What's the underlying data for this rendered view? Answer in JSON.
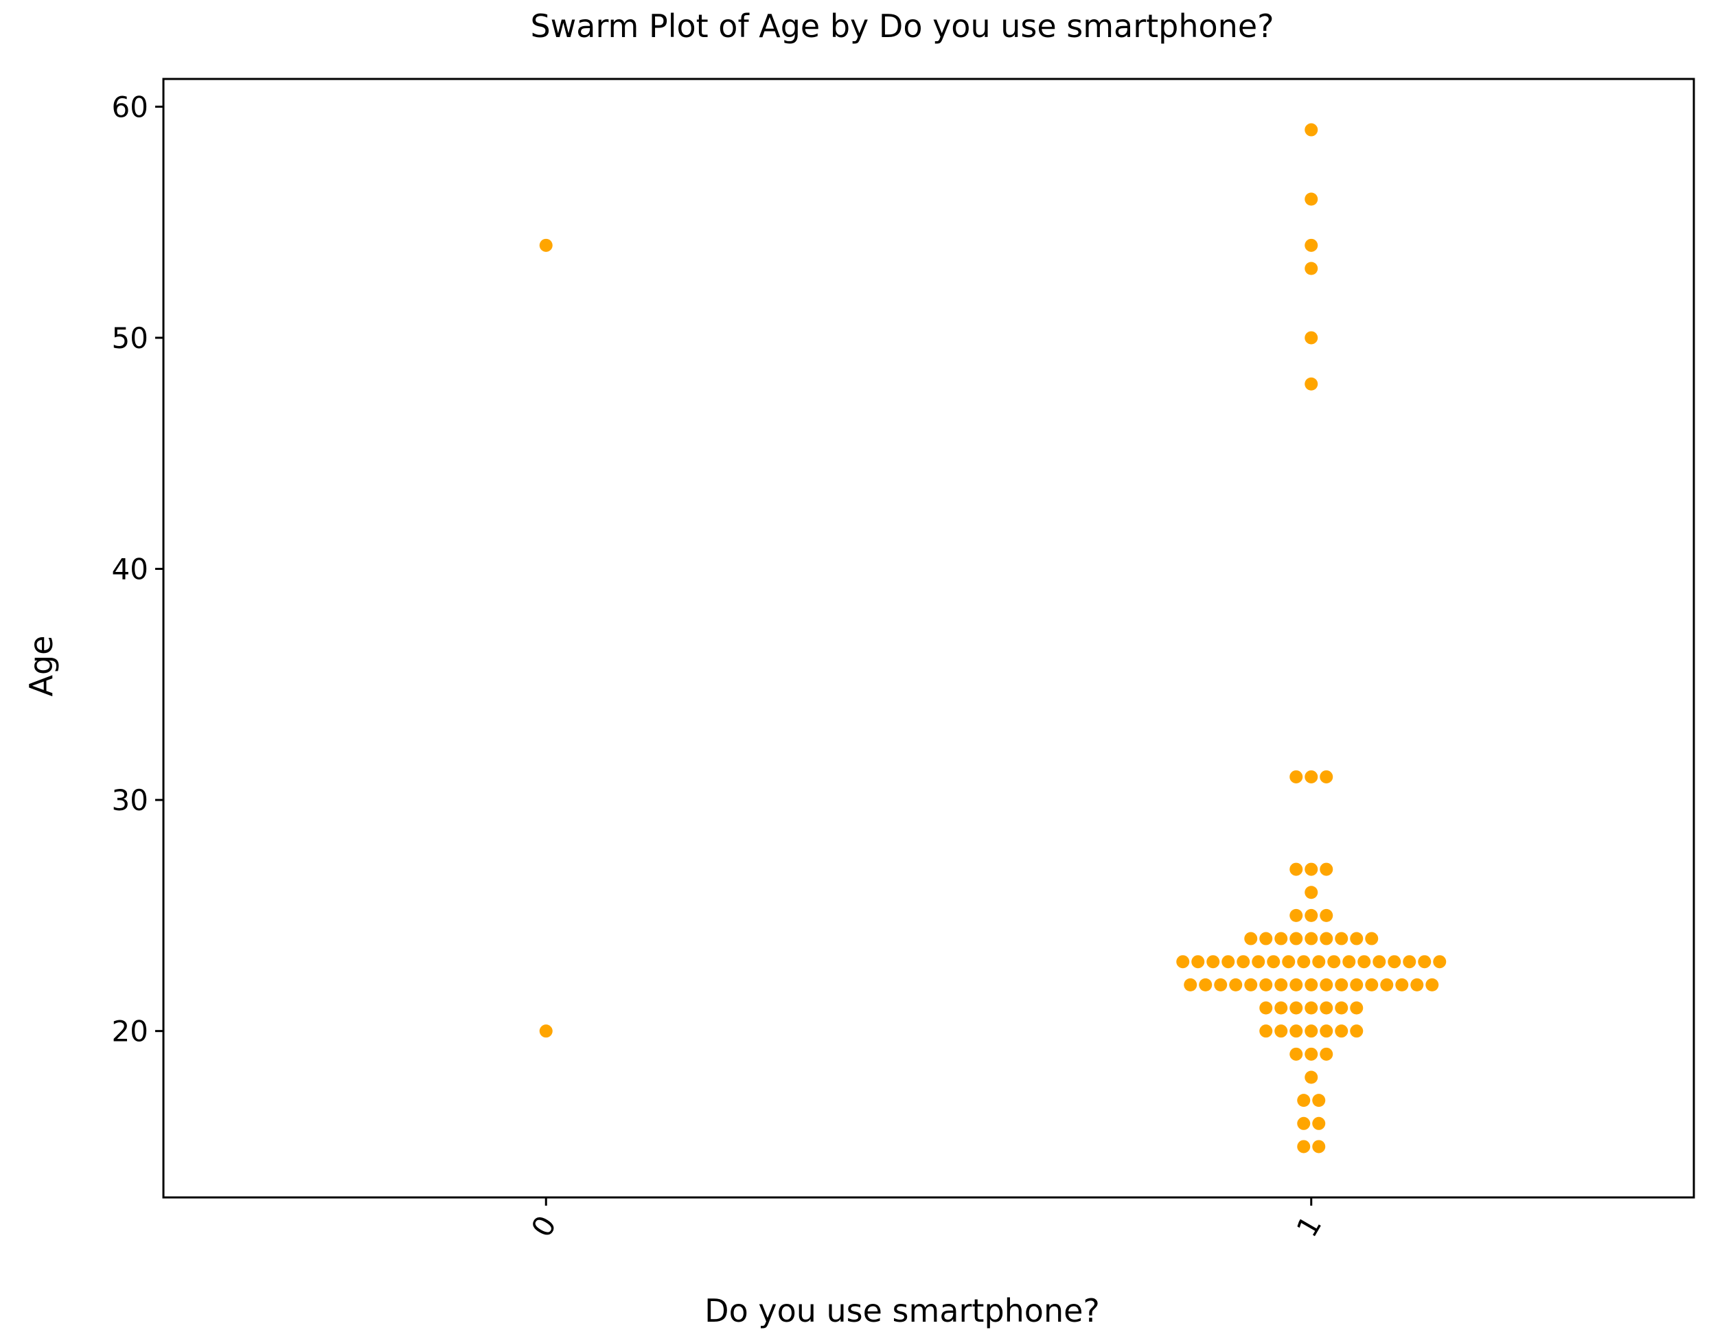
{
  "chart_data": {
    "type": "scatter",
    "subtype": "swarm",
    "title": "Swarm Plot of Age by Do you use smartphone?",
    "xlabel": "Do you use smartphone?",
    "ylabel": "Age",
    "categories": [
      "0",
      "1"
    ],
    "x_tick_rotation_deg": 60,
    "yticks": [
      20,
      30,
      40,
      50,
      60
    ],
    "ylim": [
      12.8,
      61.2
    ],
    "grid": false,
    "marker_color": "#FFA500",
    "groups": [
      {
        "category": "0",
        "values": [
          20,
          54
        ]
      },
      {
        "category": "1",
        "values": [
          15,
          15,
          16,
          16,
          17,
          17,
          18,
          19,
          19,
          19,
          20,
          20,
          20,
          20,
          20,
          20,
          20,
          21,
          21,
          21,
          21,
          21,
          21,
          21,
          22,
          22,
          22,
          22,
          22,
          22,
          22,
          22,
          22,
          22,
          22,
          22,
          22,
          22,
          22,
          22,
          22,
          23,
          23,
          23,
          23,
          23,
          23,
          23,
          23,
          23,
          23,
          23,
          23,
          23,
          23,
          23,
          23,
          23,
          23,
          24,
          24,
          24,
          24,
          24,
          24,
          24,
          24,
          24,
          25,
          25,
          25,
          26,
          27,
          27,
          27,
          31,
          31,
          31,
          48,
          50,
          53,
          54,
          56,
          59
        ]
      }
    ]
  }
}
